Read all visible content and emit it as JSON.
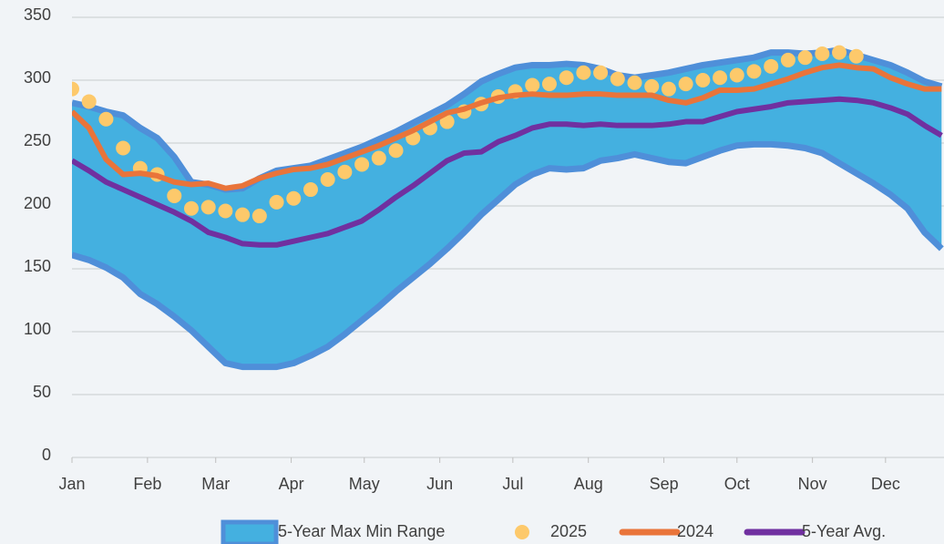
{
  "chart_data": {
    "type": "line",
    "x": [
      0,
      7,
      14,
      21,
      28,
      35,
      42,
      49,
      56,
      63,
      70,
      77,
      84,
      91,
      98,
      105,
      112,
      119,
      126,
      133,
      140,
      147,
      154,
      161,
      168,
      175,
      182,
      189,
      196,
      203,
      210,
      217,
      224,
      231,
      238,
      245,
      252,
      259,
      266,
      273,
      280,
      287,
      294,
      301,
      308,
      315,
      322,
      329,
      336,
      343,
      350,
      357
    ],
    "xlim": [
      0,
      358
    ],
    "xticks": [
      {
        "value": 0,
        "label": "Jan"
      },
      {
        "value": 31,
        "label": "Feb"
      },
      {
        "value": 59,
        "label": "Mar"
      },
      {
        "value": 90,
        "label": "Apr"
      },
      {
        "value": 120,
        "label": "May"
      },
      {
        "value": 151,
        "label": "Jun"
      },
      {
        "value": 181,
        "label": "Jul"
      },
      {
        "value": 212,
        "label": "Aug"
      },
      {
        "value": 243,
        "label": "Sep"
      },
      {
        "value": 273,
        "label": "Oct"
      },
      {
        "value": 304,
        "label": "Nov"
      },
      {
        "value": 334,
        "label": "Dec"
      }
    ],
    "ylim": [
      0,
      350
    ],
    "yticks": [
      0,
      50,
      100,
      150,
      200,
      250,
      300,
      350
    ],
    "grid": true,
    "legend": "bottom",
    "series": [
      {
        "name": "5-Year Max Min Range",
        "kind": "range",
        "color": "#44b0e0",
        "edge_color": "#4f8fd9",
        "upper": [
          282,
          279,
          275,
          272,
          262,
          254,
          239,
          219,
          217,
          213,
          214,
          222,
          228,
          230,
          232,
          237,
          242,
          247,
          253,
          259,
          266,
          273,
          280,
          289,
          299,
          305,
          310,
          312,
          312,
          313,
          312,
          309,
          304,
          302,
          304,
          306,
          309,
          312,
          314,
          316,
          318,
          322,
          322,
          321,
          322,
          324,
          320,
          316,
          312,
          306,
          299,
          295
        ],
        "lower": [
          161,
          157,
          151,
          143,
          130,
          122,
          112,
          101,
          88,
          75,
          72,
          72,
          72,
          75,
          81,
          88,
          98,
          109,
          120,
          132,
          143,
          154,
          166,
          179,
          193,
          205,
          217,
          225,
          230,
          229,
          230,
          236,
          238,
          241,
          238,
          235,
          234,
          239,
          244,
          248,
          249,
          249,
          248,
          246,
          242,
          234,
          226,
          218,
          209,
          198,
          179,
          166
        ]
      },
      {
        "name": "2025",
        "kind": "dots",
        "color": "#fdc96b",
        "values": [
          293,
          283,
          269,
          246,
          230,
          225,
          208,
          198,
          199,
          196,
          193,
          192,
          203,
          206,
          213,
          221,
          227,
          233,
          238,
          244,
          254,
          262,
          267,
          275,
          281,
          287,
          291,
          296,
          297,
          302,
          306,
          306,
          301,
          298,
          295,
          293,
          297,
          300,
          302,
          304,
          307,
          311,
          316,
          318,
          321,
          322,
          319,
          null,
          null,
          null,
          null,
          null
        ]
      },
      {
        "name": "2024",
        "kind": "line",
        "color": "#e9743a",
        "values": [
          275,
          262,
          237,
          225,
          226,
          224,
          219,
          217,
          218,
          214,
          216,
          222,
          226,
          229,
          230,
          233,
          238,
          243,
          248,
          254,
          260,
          267,
          274,
          277,
          282,
          286,
          288,
          289,
          288,
          288,
          289,
          289,
          288,
          288,
          288,
          284,
          282,
          286,
          292,
          292,
          293,
          297,
          301,
          306,
          310,
          312,
          310,
          309,
          302,
          297,
          293,
          293
        ]
      },
      {
        "name": "5-Year Avg.",
        "kind": "line",
        "color": "#7030a0",
        "values": [
          236,
          228,
          219,
          213,
          207,
          201,
          195,
          188,
          179,
          175,
          170,
          169,
          169,
          172,
          175,
          178,
          183,
          188,
          197,
          207,
          216,
          226,
          236,
          242,
          243,
          251,
          256,
          262,
          265,
          265,
          264,
          265,
          264,
          264,
          264,
          265,
          267,
          267,
          271,
          275,
          277,
          279,
          282,
          283,
          284,
          285,
          284,
          282,
          278,
          273,
          264,
          256
        ]
      }
    ]
  }
}
